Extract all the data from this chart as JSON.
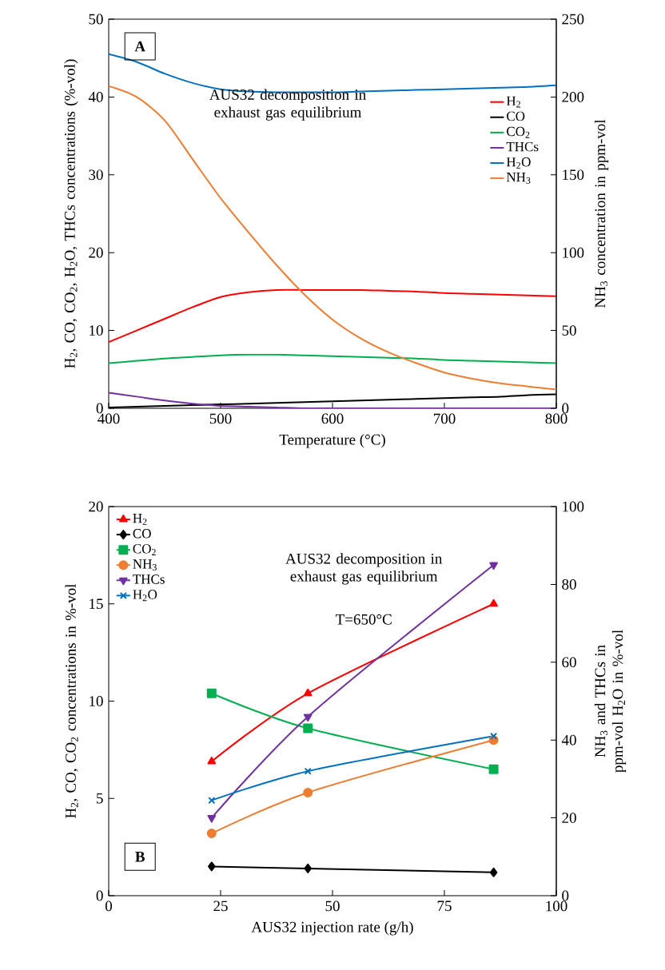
{
  "chart_data": [
    {
      "type": "line",
      "xlabel": "Temperature (°C)",
      "ylabel": "H$_{2}$, CO, CO$_{2}$, H$_{2}$O, THCs concentrations (%-vol)",
      "y2label": "NH$_{3}$ concentration in ppm-vol",
      "x": [
        400,
        425,
        450,
        475,
        500,
        525,
        550,
        575,
        600,
        625,
        650,
        675,
        700,
        725,
        750,
        775,
        800
      ],
      "series": [
        {
          "name": "H$_{2}$",
          "color": "#ff0000",
          "values": [
            8.5,
            10.0,
            11.5,
            13.0,
            14.3,
            14.9,
            15.2,
            15.2,
            15.2,
            15.2,
            15.1,
            15.0,
            14.8,
            14.7,
            14.6,
            14.5,
            14.4
          ]
        },
        {
          "name": "CO",
          "color": "#000000",
          "values": [
            0.1,
            0.2,
            0.3,
            0.4,
            0.5,
            0.6,
            0.7,
            0.8,
            0.9,
            1.0,
            1.1,
            1.2,
            1.3,
            1.4,
            1.5,
            1.7,
            1.8
          ]
        },
        {
          "name": "CO$_{2}$",
          "color": "#00b050",
          "values": [
            5.8,
            6.1,
            6.4,
            6.6,
            6.8,
            6.9,
            6.9,
            6.8,
            6.7,
            6.6,
            6.5,
            6.4,
            6.2,
            6.1,
            6.0,
            5.9,
            5.8
          ]
        },
        {
          "name": "THCs",
          "color": "#7030a0",
          "values": [
            2.0,
            1.5,
            1.0,
            0.6,
            0.3,
            0.2,
            0.1,
            0.0,
            0.0,
            0.0,
            0.0,
            0.0,
            0.0,
            0.0,
            0.0,
            0.0,
            0.0
          ]
        },
        {
          "name": "H$_{2}$O",
          "color": "#0070c0",
          "values": [
            45.5,
            44.5,
            43.0,
            41.8,
            41.0,
            40.7,
            40.6,
            40.6,
            40.6,
            40.7,
            40.8,
            40.9,
            41.0,
            41.1,
            41.2,
            41.3,
            41.5
          ]
        },
        {
          "name": "NH$_{3}$",
          "color": "#ed7d31",
          "axis": "y2",
          "values": [
            207,
            200,
            185,
            160,
            135,
            113,
            92,
            73,
            57,
            45,
            36,
            29,
            23,
            19,
            16,
            14,
            12
          ]
        }
      ],
      "xlim": [
        400,
        800
      ],
      "xticks": [
        400,
        500,
        600,
        700,
        800
      ],
      "ylim": [
        0,
        50
      ],
      "yticks": [
        0,
        10,
        20,
        30,
        40,
        50
      ],
      "y2lim": [
        0,
        250
      ],
      "y2ticks": [
        0,
        50,
        100,
        150,
        200,
        250
      ],
      "annotations": [
        "A",
        "AUS32 decomposition in exhaust gas equilibrium"
      ],
      "legend": "top right",
      "marker": "none",
      "line_style": "solid",
      "grid": false
    },
    {
      "type": "line",
      "xlabel": "AUS32 injection rate (g/h)",
      "ylabel": "H$_{2}$, CO, CO$_{2}$ concentrations in %-vol",
      "y2label": "NH$_{3}$ and THCs in ppm-vol H$_{2}$O in %-vol",
      "x": [
        23,
        44.5,
        86
      ],
      "series": [
        {
          "name": "H$_{2}$",
          "color": "#ff0000",
          "marker": "triangle",
          "values": [
            6.9,
            10.4,
            15.0
          ]
        },
        {
          "name": "CO",
          "color": "#000000",
          "marker": "diamond",
          "values": [
            1.5,
            1.4,
            1.2
          ]
        },
        {
          "name": "CO$_{2}$",
          "color": "#00b050",
          "marker": "square",
          "values": [
            10.4,
            8.6,
            6.5
          ]
        },
        {
          "name": "NH$_{3}$",
          "color": "#ed7d31",
          "marker": "circle",
          "axis": "y2",
          "values": [
            16,
            26.5,
            40
          ]
        },
        {
          "name": "THCs",
          "color": "#7030a0",
          "marker": "triangle-down",
          "axis": "y2",
          "values": [
            20,
            46,
            85
          ]
        },
        {
          "name": "H$_{2}$O",
          "color": "#0070c0",
          "marker": "cross",
          "axis": "y2",
          "values": [
            24.5,
            32,
            41
          ]
        }
      ],
      "xlim": [
        0,
        100
      ],
      "xticks": [
        0,
        25,
        50,
        75,
        100
      ],
      "ylim": [
        0,
        20
      ],
      "yticks": [
        0,
        5,
        10,
        15,
        20
      ],
      "y2lim": [
        0,
        100
      ],
      "y2ticks": [
        0,
        20,
        40,
        60,
        80,
        100
      ],
      "annotations": [
        "B",
        "AUS32 decomposition in exhaust gas equilibrium",
        "T=650°C"
      ],
      "legend": "top left",
      "line_style": "solid",
      "grid": false
    }
  ]
}
